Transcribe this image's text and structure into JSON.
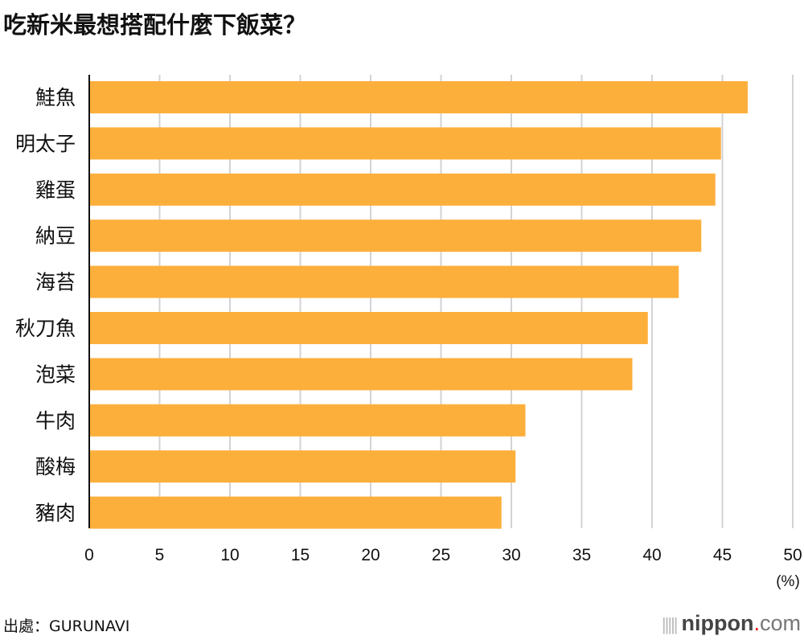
{
  "chart_data": {
    "type": "bar",
    "orientation": "horizontal",
    "title": "吃新米最想搭配什麼下飯菜？",
    "categories": [
      "鮭魚",
      "明太子",
      "雞蛋",
      "納豆",
      "海苔",
      "秋刀魚",
      "泡菜",
      "牛肉",
      "酸梅",
      "豬肉"
    ],
    "values": [
      46.8,
      44.9,
      44.5,
      43.5,
      41.9,
      39.7,
      38.6,
      31.0,
      30.3,
      29.3
    ],
    "xlim": [
      0,
      50
    ],
    "xticks": [
      "0",
      "5",
      "10",
      "15",
      "20",
      "25",
      "30",
      "35",
      "40",
      "45",
      "50"
    ],
    "xunit": "(%)",
    "grid": true,
    "bar_color": "#FDAF3C",
    "grid_color": "#D3D3D3"
  },
  "footer": {
    "source": "出處：GURUNAVI",
    "logo": "nippon.com"
  }
}
